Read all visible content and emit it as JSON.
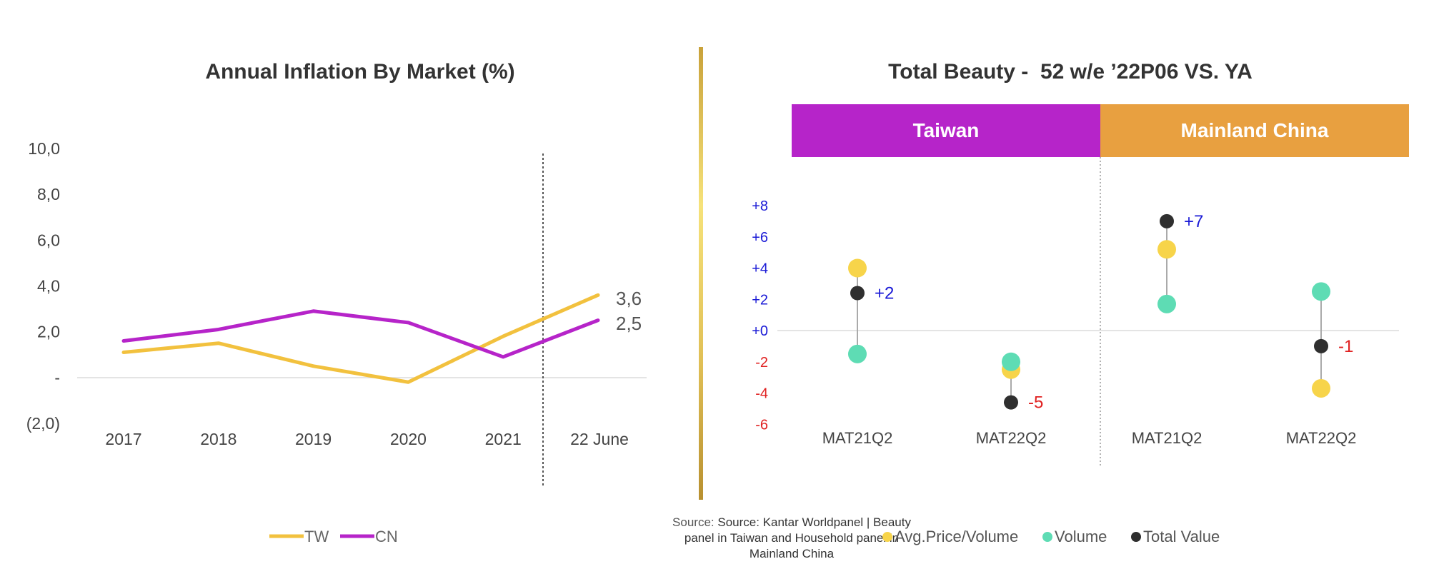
{
  "left_chart": {
    "title": "Annual Inflation By Market (%)",
    "legend": [
      {
        "label": "TW",
        "color": "#f2c13e"
      },
      {
        "label": "CN",
        "color": "#b624c9"
      }
    ],
    "end_labels": {
      "tw": "3,6",
      "cn": "2,5"
    }
  },
  "right_chart": {
    "title": "Total Beauty -  52 w/e ’22P06 VS. YA",
    "panels": [
      {
        "label": "Taiwan",
        "color": "#b624c9"
      },
      {
        "label": "Mainland China",
        "color": "#e8a040"
      }
    ],
    "legend": [
      {
        "label": "Avg.Price/Volume",
        "color": "#f7d44a"
      },
      {
        "label": "Volume",
        "color": "#5edcb4"
      },
      {
        "label": "Total Value",
        "color": "#2f2f2f"
      }
    ],
    "value_labels": [
      "+2",
      "-5",
      "+7",
      "-1"
    ]
  },
  "source_note": {
    "prefix": "Source: ",
    "line1": "Source: Kantar Worldpanel | Beauty",
    "line2": "panel in Taiwan and Household panel in",
    "line3": "Mainland China"
  },
  "colors": {
    "divider_gold": "#d4b24c",
    "tw": "#f2c13e",
    "cn": "#b624c9",
    "positive": "#1a1ad6",
    "negative": "#e02020"
  },
  "chart_data": [
    {
      "type": "line",
      "title": "Annual Inflation By Market (%)",
      "categories": [
        "2017",
        "2018",
        "2019",
        "2020",
        "2021",
        "22 June"
      ],
      "series": [
        {
          "name": "TW",
          "values": [
            1.1,
            1.5,
            0.5,
            -0.2,
            1.8,
            3.6
          ]
        },
        {
          "name": "CN",
          "values": [
            1.6,
            2.1,
            2.9,
            2.4,
            0.9,
            2.5
          ]
        }
      ],
      "y_ticks": [
        "10,0",
        "8,0",
        "6,0",
        "4,0",
        "2,0",
        "-",
        "(2,0)"
      ],
      "ylim": [
        -2,
        10
      ],
      "legend": "bottom",
      "grid": false
    },
    {
      "type": "scatter",
      "title": "Total Beauty -  52 w/e ’22P06 VS. YA",
      "categories": [
        "MAT21Q2",
        "MAT22Q2",
        "MAT21Q2",
        "MAT22Q2"
      ],
      "groups": [
        "Taiwan",
        "Taiwan",
        "Mainland China",
        "Mainland China"
      ],
      "series": [
        {
          "name": "Avg.Price/Volume",
          "values": [
            4,
            -2.5,
            5.2,
            -3.7
          ]
        },
        {
          "name": "Volume",
          "values": [
            -1.5,
            -2,
            1.7,
            2.5
          ]
        },
        {
          "name": "Total Value",
          "values": [
            2.4,
            -4.6,
            7,
            -1
          ]
        }
      ],
      "y_ticks": [
        "+8",
        "+6",
        "+4",
        "+2",
        "+0",
        "-2",
        "-4",
        "-6"
      ],
      "ylim": [
        -6,
        8
      ],
      "legend": "bottom"
    }
  ]
}
